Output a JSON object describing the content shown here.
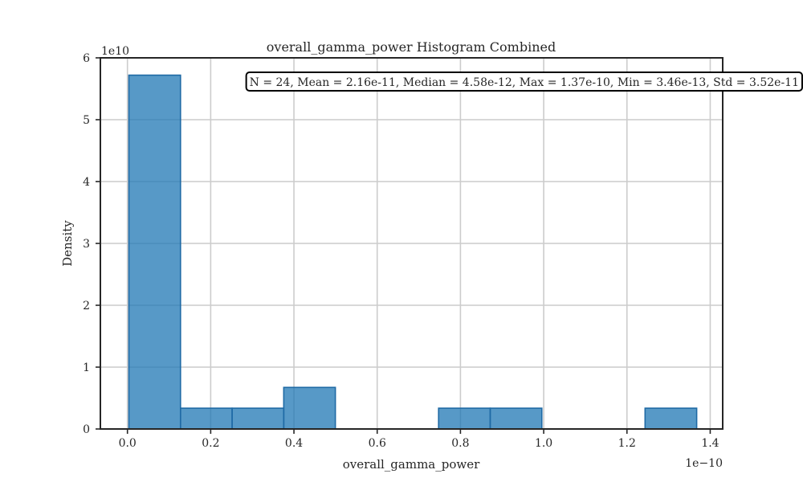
{
  "chart_data": {
    "type": "histogram",
    "title": "overall_gamma_power Histogram Combined",
    "xlabel": "overall_gamma_power",
    "ylabel": "Density",
    "x_scale_label": "1e−10",
    "y_scale_label": "1e10",
    "xlim": [
      -0.065,
      1.43
    ],
    "ylim": [
      0,
      6
    ],
    "x_ticks": [
      0.0,
      0.2,
      0.4,
      0.6,
      0.8,
      1.0,
      1.2,
      1.4
    ],
    "x_tick_labels": [
      "0.0",
      "0.2",
      "0.4",
      "0.6",
      "0.8",
      "1.0",
      "1.2",
      "1.4"
    ],
    "y_ticks": [
      0,
      1,
      2,
      3,
      4,
      5,
      6
    ],
    "y_tick_labels": [
      "0",
      "1",
      "2",
      "3",
      "4",
      "5",
      "6"
    ],
    "bin_edges": [
      0.00346,
      0.1275,
      0.2515,
      0.3755,
      0.4995,
      0.6235,
      0.7475,
      0.8715,
      0.9955,
      1.1195,
      1.2435,
      1.3675
    ],
    "values": [
      5.72,
      0.336,
      0.336,
      0.672,
      0.0,
      0.0,
      0.336,
      0.336,
      0.0,
      0.0,
      0.336
    ],
    "stats_text": "N = 24, Mean = 2.16e-11, Median = 4.58e-12, Max = 1.37e-10, Min = 3.46e-13, Std = 3.52e-11",
    "grid": true,
    "colors": {
      "fill": "#1f77b4",
      "edge": "#1f6aa5",
      "grid": "#cccccc",
      "axis": "#262626"
    }
  }
}
